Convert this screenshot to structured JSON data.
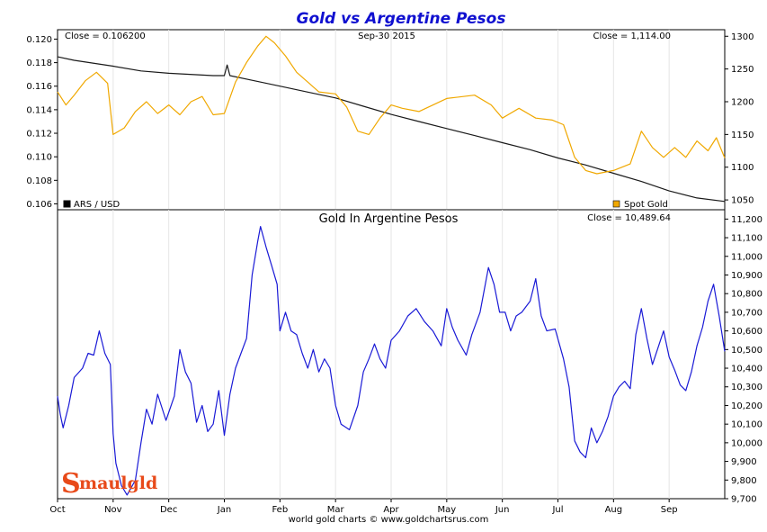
{
  "chart_data": [
    {
      "type": "line",
      "title": "Gold vs Argentine Pesos",
      "date_label": "Sep-30  2015",
      "left_readout": "Close = 0.106200",
      "right_readout": "Close = 1,114.00",
      "x_ticks": [
        "Oct",
        "Nov",
        "Dec",
        "Jan",
        "Feb",
        "Mar",
        "Apr",
        "May",
        "Jun",
        "Jul",
        "Aug",
        "Sep"
      ],
      "y_left_ticks": [
        "0.120",
        "0.118",
        "0.116",
        "0.114",
        "0.112",
        "0.110",
        "0.108",
        "0.106"
      ],
      "y_left_range": [
        0.1055,
        0.1208
      ],
      "y_right_ticks": [
        "1300",
        "1250",
        "1200",
        "1150",
        "1100",
        "1050"
      ],
      "y_right_range": [
        1035,
        1310
      ],
      "legend": [
        {
          "label": "ARS / USD",
          "color": "#000000"
        },
        {
          "label": "Spot Gold",
          "color": "#f0a800"
        }
      ],
      "series": [
        {
          "name": "ARS / USD",
          "axis": "left",
          "color": "#1a1a1a",
          "points": [
            [
              0,
              0.1185
            ],
            [
              0.3,
              0.1182
            ],
            [
              1.0,
              0.1177
            ],
            [
              1.5,
              0.1173
            ],
            [
              2.0,
              0.1171
            ],
            [
              2.8,
              0.1169
            ],
            [
              3.0,
              0.1169
            ],
            [
              3.05,
              0.1178
            ],
            [
              3.1,
              0.1169
            ],
            [
              3.5,
              0.1165
            ],
            [
              4.0,
              0.116
            ],
            [
              4.5,
              0.1155
            ],
            [
              5.0,
              0.115
            ],
            [
              5.5,
              0.1143
            ],
            [
              6.0,
              0.1136
            ],
            [
              6.5,
              0.113
            ],
            [
              7.0,
              0.1124
            ],
            [
              7.5,
              0.1118
            ],
            [
              8.0,
              0.1112
            ],
            [
              8.5,
              0.1106
            ],
            [
              9.0,
              0.1099
            ],
            [
              9.5,
              0.1093
            ],
            [
              10.0,
              0.1086
            ],
            [
              10.5,
              0.1079
            ],
            [
              11.0,
              0.1071
            ],
            [
              11.5,
              0.1065
            ],
            [
              12.0,
              0.1062
            ]
          ]
        },
        {
          "name": "Spot Gold",
          "axis": "right",
          "color": "#f0a800",
          "points": [
            [
              0,
              1215
            ],
            [
              0.15,
              1195
            ],
            [
              0.3,
              1210
            ],
            [
              0.5,
              1232
            ],
            [
              0.7,
              1245
            ],
            [
              0.9,
              1228
            ],
            [
              1.0,
              1150
            ],
            [
              1.2,
              1160
            ],
            [
              1.4,
              1185
            ],
            [
              1.6,
              1200
            ],
            [
              1.8,
              1182
            ],
            [
              2.0,
              1195
            ],
            [
              2.2,
              1180
            ],
            [
              2.4,
              1200
            ],
            [
              2.6,
              1208
            ],
            [
              2.8,
              1180
            ],
            [
              3.0,
              1182
            ],
            [
              3.2,
              1230
            ],
            [
              3.4,
              1260
            ],
            [
              3.6,
              1285
            ],
            [
              3.75,
              1300
            ],
            [
              3.9,
              1290
            ],
            [
              4.1,
              1270
            ],
            [
              4.3,
              1245
            ],
            [
              4.5,
              1230
            ],
            [
              4.7,
              1215
            ],
            [
              5.0,
              1212
            ],
            [
              5.2,
              1192
            ],
            [
              5.4,
              1155
            ],
            [
              5.6,
              1150
            ],
            [
              5.8,
              1175
            ],
            [
              6.0,
              1195
            ],
            [
              6.2,
              1190
            ],
            [
              6.5,
              1185
            ],
            [
              7.0,
              1205
            ],
            [
              7.5,
              1210
            ],
            [
              7.8,
              1195
            ],
            [
              8.0,
              1175
            ],
            [
              8.3,
              1190
            ],
            [
              8.6,
              1175
            ],
            [
              8.9,
              1172
            ],
            [
              9.1,
              1165
            ],
            [
              9.3,
              1115
            ],
            [
              9.5,
              1095
            ],
            [
              9.7,
              1090
            ],
            [
              10.0,
              1095
            ],
            [
              10.3,
              1105
            ],
            [
              10.5,
              1155
            ],
            [
              10.7,
              1130
            ],
            [
              10.9,
              1115
            ],
            [
              11.1,
              1130
            ],
            [
              11.3,
              1115
            ],
            [
              11.5,
              1140
            ],
            [
              11.7,
              1125
            ],
            [
              11.85,
              1145
            ],
            [
              12.0,
              1114
            ]
          ]
        }
      ]
    },
    {
      "type": "line",
      "title": "Gold In Argentine Pesos",
      "right_readout": "Close = 10,489.64",
      "x_ticks": [
        "Oct",
        "Nov",
        "Dec",
        "Jan",
        "Feb",
        "Mar",
        "Apr",
        "May",
        "Jun",
        "Jul",
        "Aug",
        "Sep"
      ],
      "y_right_ticks": [
        "11,200",
        "11,100",
        "11,000",
        "10,900",
        "10,800",
        "10,700",
        "10,600",
        "10,500",
        "10,400",
        "10,300",
        "10,200",
        "10,100",
        "10,000",
        "9,900",
        "9,800",
        "9,700"
      ],
      "y_right_range": [
        9700,
        11250
      ],
      "series": [
        {
          "name": "Gold In Argentine Pesos",
          "axis": "right",
          "color": "#1a1ad6",
          "points": [
            [
              0,
              10250
            ],
            [
              0.05,
              10150
            ],
            [
              0.1,
              10080
            ],
            [
              0.2,
              10200
            ],
            [
              0.3,
              10350
            ],
            [
              0.45,
              10400
            ],
            [
              0.55,
              10480
            ],
            [
              0.65,
              10470
            ],
            [
              0.75,
              10600
            ],
            [
              0.85,
              10480
            ],
            [
              0.95,
              10420
            ],
            [
              1.0,
              10050
            ],
            [
              1.05,
              9890
            ],
            [
              1.15,
              9770
            ],
            [
              1.25,
              9720
            ],
            [
              1.4,
              9800
            ],
            [
              1.5,
              10000
            ],
            [
              1.6,
              10180
            ],
            [
              1.7,
              10100
            ],
            [
              1.8,
              10260
            ],
            [
              1.95,
              10120
            ],
            [
              2.1,
              10250
            ],
            [
              2.2,
              10500
            ],
            [
              2.3,
              10380
            ],
            [
              2.4,
              10320
            ],
            [
              2.5,
              10110
            ],
            [
              2.6,
              10200
            ],
            [
              2.7,
              10060
            ],
            [
              2.8,
              10100
            ],
            [
              2.9,
              10280
            ],
            [
              3.0,
              10040
            ],
            [
              3.1,
              10260
            ],
            [
              3.2,
              10400
            ],
            [
              3.3,
              10480
            ],
            [
              3.4,
              10560
            ],
            [
              3.5,
              10900
            ],
            [
              3.6,
              11080
            ],
            [
              3.65,
              11160
            ],
            [
              3.75,
              11050
            ],
            [
              3.85,
              10950
            ],
            [
              3.95,
              10850
            ],
            [
              4.0,
              10600
            ],
            [
              4.1,
              10700
            ],
            [
              4.2,
              10600
            ],
            [
              4.3,
              10580
            ],
            [
              4.4,
              10480
            ],
            [
              4.5,
              10400
            ],
            [
              4.6,
              10500
            ],
            [
              4.7,
              10380
            ],
            [
              4.8,
              10450
            ],
            [
              4.9,
              10400
            ],
            [
              5.0,
              10200
            ],
            [
              5.1,
              10100
            ],
            [
              5.25,
              10070
            ],
            [
              5.4,
              10200
            ],
            [
              5.5,
              10380
            ],
            [
              5.6,
              10450
            ],
            [
              5.7,
              10530
            ],
            [
              5.8,
              10450
            ],
            [
              5.9,
              10400
            ],
            [
              6.0,
              10550
            ],
            [
              6.15,
              10600
            ],
            [
              6.3,
              10680
            ],
            [
              6.45,
              10720
            ],
            [
              6.6,
              10650
            ],
            [
              6.75,
              10600
            ],
            [
              6.9,
              10520
            ],
            [
              7.0,
              10720
            ],
            [
              7.1,
              10620
            ],
            [
              7.2,
              10550
            ],
            [
              7.35,
              10470
            ],
            [
              7.45,
              10580
            ],
            [
              7.6,
              10700
            ],
            [
              7.75,
              10940
            ],
            [
              7.85,
              10850
            ],
            [
              7.95,
              10700
            ],
            [
              8.05,
              10700
            ],
            [
              8.15,
              10600
            ],
            [
              8.25,
              10680
            ],
            [
              8.35,
              10700
            ],
            [
              8.5,
              10760
            ],
            [
              8.6,
              10880
            ],
            [
              8.7,
              10680
            ],
            [
              8.8,
              10600
            ],
            [
              8.95,
              10610
            ],
            [
              9.1,
              10450
            ],
            [
              9.2,
              10300
            ],
            [
              9.3,
              10010
            ],
            [
              9.4,
              9950
            ],
            [
              9.5,
              9920
            ],
            [
              9.6,
              10080
            ],
            [
              9.7,
              10000
            ],
            [
              9.8,
              10060
            ],
            [
              9.9,
              10140
            ],
            [
              10.0,
              10250
            ],
            [
              10.1,
              10300
            ],
            [
              10.2,
              10330
            ],
            [
              10.3,
              10290
            ],
            [
              10.4,
              10580
            ],
            [
              10.5,
              10720
            ],
            [
              10.6,
              10560
            ],
            [
              10.7,
              10420
            ],
            [
              10.8,
              10510
            ],
            [
              10.9,
              10600
            ],
            [
              11.0,
              10460
            ],
            [
              11.1,
              10390
            ],
            [
              11.2,
              10310
            ],
            [
              11.3,
              10280
            ],
            [
              11.4,
              10380
            ],
            [
              11.5,
              10520
            ],
            [
              11.6,
              10620
            ],
            [
              11.7,
              10760
            ],
            [
              11.8,
              10850
            ],
            [
              11.9,
              10680
            ],
            [
              12.0,
              10490
            ]
          ]
        }
      ],
      "footer": "world gold charts © www.goldchartsrus.com",
      "logo": "Smaulgld"
    }
  ]
}
